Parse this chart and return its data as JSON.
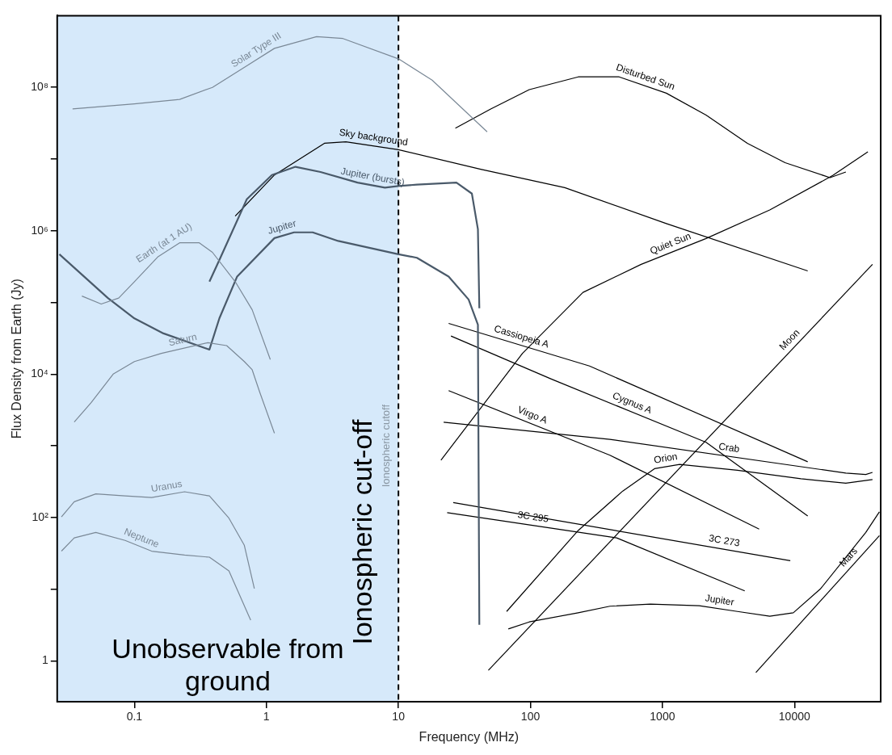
{
  "chart_data": {
    "type": "line",
    "xlabel": "Frequency (MHz)",
    "ylabel": "Flux Density from Earth (Jy)",
    "log": "xy",
    "xlim": [
      0.026,
      45000
    ],
    "ylim": [
      0.27,
      1000000000
    ],
    "xticks": [
      0.1,
      1,
      10,
      100,
      1000,
      10000
    ],
    "yticks": [
      {
        "value": 1,
        "label": "1"
      },
      {
        "value": 10,
        "label": null
      },
      {
        "value": 100,
        "label": "10²"
      },
      {
        "value": 1000,
        "label": null
      },
      {
        "value": 10000,
        "label": "10⁴"
      },
      {
        "value": 100000,
        "label": null
      },
      {
        "value": 1000000,
        "label": "10⁶"
      },
      {
        "value": 10000000,
        "label": null
      },
      {
        "value": 100000000,
        "label": "10⁸"
      }
    ],
    "grid": false,
    "legend": false,
    "marker": "none",
    "line_style": "solid",
    "bands": [
      {
        "axis": "x",
        "from": 0.026,
        "to": 10,
        "label": "Unobservable from ground",
        "color": "#d6e9fa"
      }
    ],
    "ref_lines": [
      {
        "axis": "x",
        "value": 10,
        "label": "Ionospheric cut-off",
        "line_style": "dashed",
        "color": "#000000"
      }
    ],
    "annotations": [
      {
        "text": "Ionospheric cutoff",
        "x": 10,
        "y": 1000
      }
    ],
    "series": [
      {
        "name": "Solar Type III",
        "color": "#7a8896",
        "x": [
          0.034,
          0.1,
          0.22,
          0.39,
          0.71,
          1.15,
          2.4,
          3.8,
          10,
          18,
          47
        ],
        "values": [
          50000000,
          59000000,
          68000000,
          100000000,
          200000000,
          350000000,
          510000000,
          480000000,
          250000000,
          126000000,
          24000000
        ]
      },
      {
        "name": "Earth (at 1 AU)",
        "color": "#7a8896",
        "x": [
          0.04,
          0.056,
          0.076,
          0.1,
          0.15,
          0.22,
          0.31,
          0.39,
          0.58,
          0.78,
          1.07
        ],
        "values": [
          123000,
          95000,
          115000,
          195000,
          430000,
          680000,
          680000,
          500000,
          195000,
          79000,
          16000
        ]
      },
      {
        "name": "Saturn",
        "color": "#7a8896",
        "x": [
          0.035,
          0.047,
          0.069,
          0.1,
          0.16,
          0.36,
          0.5,
          0.68,
          0.78,
          0.89,
          1.15
        ],
        "values": [
          2150,
          4000,
          10000,
          15000,
          19500,
          27500,
          25000,
          15000,
          11500,
          5600,
          1500
        ]
      },
      {
        "name": "Uranus",
        "color": "#7a8896",
        "x": [
          0.028,
          0.035,
          0.051,
          0.085,
          0.135,
          0.24,
          0.37,
          0.52,
          0.68,
          0.81
        ],
        "values": [
          102,
          166,
          214,
          200,
          190,
          229,
          200,
          98,
          41,
          10.2
        ]
      },
      {
        "name": "Neptune",
        "color": "#7a8896",
        "x": [
          0.028,
          0.035,
          0.051,
          0.085,
          0.135,
          0.24,
          0.37,
          0.52,
          0.76
        ],
        "values": [
          34,
          52,
          62,
          48,
          34,
          30,
          28,
          18,
          3.7
        ]
      },
      {
        "name": "Jupiter",
        "color": "#4a5a6a",
        "x": [
          0.027,
          0.063,
          0.1,
          0.166,
          0.37,
          0.44,
          0.6,
          1.15,
          1.62,
          2.24,
          3.5,
          10,
          13.8,
          24,
          34,
          40,
          41
        ],
        "values": [
          470000,
          115000,
          60000,
          37000,
          22000,
          60000,
          230000,
          790000,
          950000,
          950000,
          720000,
          470000,
          420000,
          230000,
          110000,
          49000,
          3.2
        ]
      },
      {
        "name": "Jupiter (bursts)",
        "color": "#4a5a6a",
        "x": [
          0.37,
          0.44,
          0.71,
          1.1,
          1.66,
          2.57,
          4.9,
          7.9,
          10,
          13.8,
          27.5,
          36,
          40,
          41
        ],
        "values": [
          195000,
          390000,
          2750000,
          6000000,
          7800000,
          6600000,
          4700000,
          4000000,
          4200000,
          4400000,
          4700000,
          3300000,
          1050000,
          83000
        ]
      },
      {
        "name": "Sky background",
        "color": "#000000",
        "x": [
          0.58,
          1.15,
          2.75,
          4,
          10,
          42,
          182,
          1070,
          12600
        ],
        "values": [
          1600000,
          6000000,
          16600000,
          17400000,
          13500000,
          7200000,
          4000000,
          1260000,
          275000
        ]
      },
      {
        "name": "Disturbed Sun",
        "color": "#000000",
        "x": [
          27,
          50,
          98,
          230,
          470,
          1070,
          2140,
          4400,
          8500,
          18600,
          24500
        ],
        "values": [
          27000000,
          50000000,
          93000000,
          140000000,
          140000000,
          83000000,
          41000000,
          16600000,
          8900000,
          5500000,
          6600000
        ]
      },
      {
        "name": "Quiet Sun",
        "color": "#000000",
        "x": [
          21,
          87,
          250,
          690,
          2140,
          6500,
          19500,
          36000
        ],
        "values": [
          630,
          19500,
          138000,
          340000,
          780000,
          1950000,
          5900000,
          12600000
        ]
      },
      {
        "name": "Cassiopeia A",
        "color": "#000000",
        "x": [
          24,
          280,
          12600
        ],
        "values": [
          51000,
          13000,
          600
        ]
      },
      {
        "name": "Cygnus A",
        "color": "#000000",
        "x": [
          25,
          145,
          2140,
          12600
        ],
        "values": [
          34000,
          8500,
          1120,
          105
        ]
      },
      {
        "name": "Crab",
        "color": "#000000",
        "x": [
          22,
          400,
          24500,
          34700,
          39000
        ],
        "values": [
          2140,
          1230,
          417,
          398,
          427
        ]
      },
      {
        "name": "Virgo A",
        "color": "#000000",
        "x": [
          24,
          400,
          5400
        ],
        "values": [
          5900,
          740,
          69
        ]
      },
      {
        "name": "3C 273",
        "color": "#000000",
        "x": [
          26,
          9300
        ],
        "values": [
          162,
          25
        ]
      },
      {
        "name": "3C 295",
        "color": "#000000",
        "x": [
          23.4,
          450,
          4200
        ],
        "values": [
          117,
          52,
          9.5
        ]
      },
      {
        "name": "Orion",
        "color": "#000000",
        "x": [
          66,
          230,
          500,
          870,
          1350,
          3700,
          11200,
          24500,
          39000
        ],
        "values": [
          4.9,
          66,
          234,
          480,
          550,
          457,
          347,
          302,
          339
        ]
      },
      {
        "name": "Moon",
        "color": "#000000",
        "x": [
          48,
          39000
        ],
        "values": [
          0.74,
          340000
        ]
      },
      {
        "name": "Mars",
        "color": "#000000",
        "x": [
          5100,
          44000
        ],
        "values": [
          0.69,
          56
        ]
      },
      {
        "name": "Jupiter",
        "color": "#000000",
        "x": [
          68,
          98,
          230,
          400,
          810,
          1900,
          3700,
          6500,
          9800,
          15800,
          34700,
          44000
        ],
        "values": [
          2.8,
          3.5,
          4.7,
          5.8,
          6.2,
          5.9,
          4.9,
          4.2,
          4.7,
          10.2,
          62,
          120
        ]
      }
    ]
  }
}
